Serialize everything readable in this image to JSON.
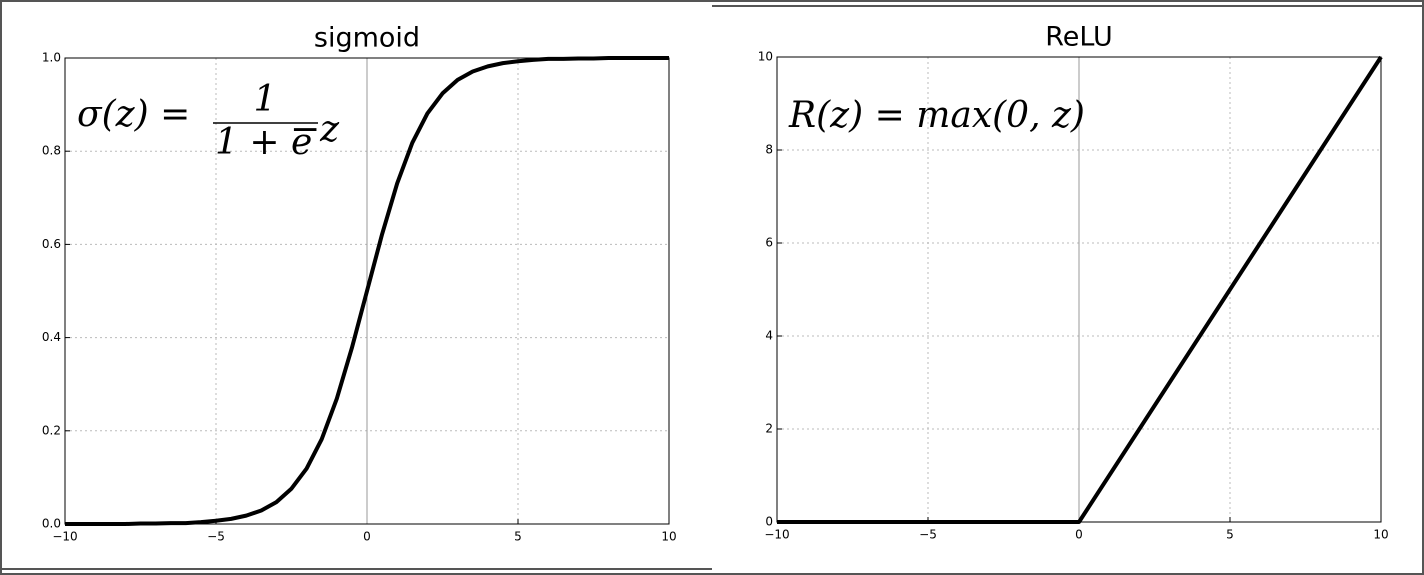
{
  "chart_data": [
    {
      "type": "line",
      "title": "sigmoid",
      "annotation": {
        "lhs": "σ(z) =",
        "numerator": "1",
        "denominator": "1 + e",
        "exponent": "−z"
      },
      "x": [
        -10,
        -9.5,
        -9,
        -8.5,
        -8,
        -7.5,
        -7,
        -6.5,
        -6,
        -5.5,
        -5,
        -4.5,
        -4,
        -3.5,
        -3,
        -2.5,
        -2,
        -1.5,
        -1,
        -0.5,
        0,
        0.5,
        1,
        1.5,
        2,
        2.5,
        3,
        3.5,
        4,
        4.5,
        5,
        5.5,
        6,
        6.5,
        7,
        7.5,
        8,
        8.5,
        9,
        9.5,
        10
      ],
      "values": [
        0,
        0,
        0,
        0,
        0,
        0.001,
        0.001,
        0.002,
        0.002,
        0.004,
        0.007,
        0.011,
        0.018,
        0.029,
        0.047,
        0.076,
        0.119,
        0.182,
        0.269,
        0.378,
        0.5,
        0.622,
        0.731,
        0.818,
        0.881,
        0.924,
        0.953,
        0.971,
        0.982,
        0.989,
        0.993,
        0.996,
        0.998,
        0.998,
        0.999,
        0.999,
        1,
        1,
        1,
        1,
        1
      ],
      "color": "#000000",
      "xlim": [
        -10,
        10
      ],
      "ylim": [
        0,
        1
      ],
      "xticks": [
        {
          "value": -10,
          "label": "−10"
        },
        {
          "value": -5,
          "label": "−5"
        },
        0,
        5,
        10
      ],
      "yticks": [
        {
          "value": 0,
          "label": "0.0"
        },
        0.2,
        0.4,
        0.6,
        0.8,
        {
          "value": 1,
          "label": "1.0"
        }
      ],
      "grid": true
    },
    {
      "type": "line",
      "title": "ReLU",
      "annotation": {
        "lhs": "R(z) = max(0,  z)"
      },
      "x": [
        -10,
        0,
        10
      ],
      "values": [
        0,
        0,
        10
      ],
      "color": "#000000",
      "xlim": [
        -10,
        10
      ],
      "ylim": [
        0,
        10
      ],
      "xticks": [
        {
          "value": -10,
          "label": "−10"
        },
        {
          "value": -5,
          "label": "−5"
        },
        0,
        5,
        10
      ],
      "yticks": [
        0,
        2,
        4,
        6,
        8,
        10
      ],
      "grid": true
    }
  ]
}
